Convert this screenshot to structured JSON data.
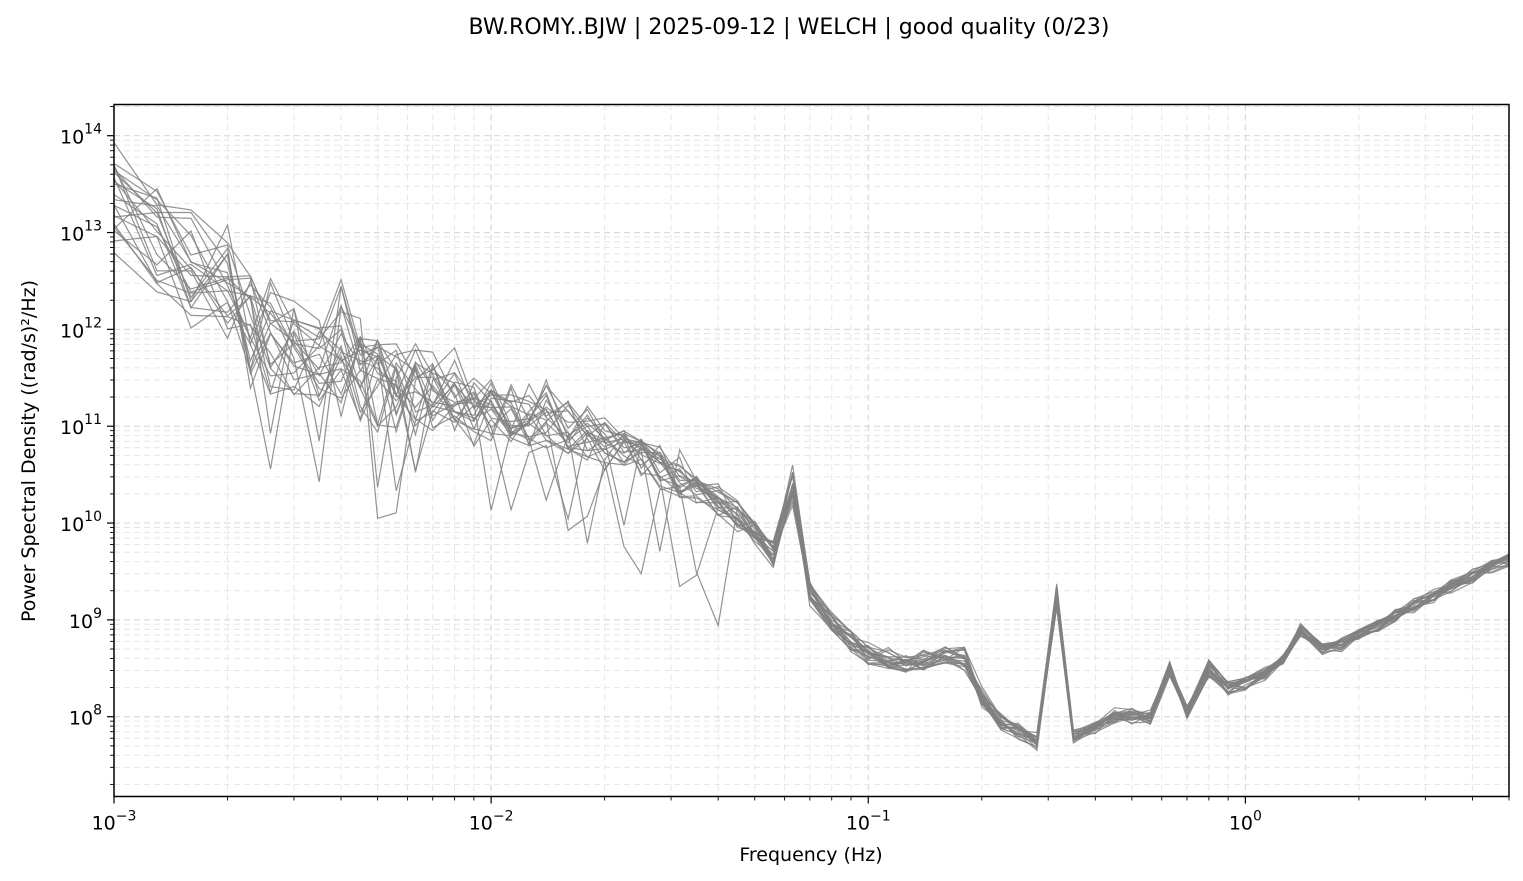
{
  "chart_data": {
    "type": "line",
    "title": "BW.ROMY..BJW | 2025-09-12 | WELCH | good quality (0/23)",
    "xlabel": "Frequency (Hz)",
    "ylabel": "Power Spectral Density ((rad/s)²/Hz)",
    "xscale": "log",
    "yscale": "log",
    "xlim": [
      0.001,
      5
    ],
    "ylim": [
      15000000.0,
      210000000000000.0
    ],
    "grid": "major and minor, dashed",
    "legend": "none",
    "xticks": [
      {
        "value": 0.001,
        "label": "10",
        "exp": "−3"
      },
      {
        "value": 0.01,
        "label": "10",
        "exp": "−2"
      },
      {
        "value": 0.1,
        "label": "10",
        "exp": "−1"
      },
      {
        "value": 1,
        "label": "10",
        "exp": "0"
      }
    ],
    "yticks": [
      {
        "value": 100000000.0,
        "label": "10",
        "exp": "8"
      },
      {
        "value": 1000000000.0,
        "label": "10",
        "exp": "9"
      },
      {
        "value": 10000000000.0,
        "label": "10",
        "exp": "10"
      },
      {
        "value": 100000000000.0,
        "label": "10",
        "exp": "11"
      },
      {
        "value": 1000000000000.0,
        "label": "10",
        "exp": "12"
      },
      {
        "value": 10000000000000.0,
        "label": "10",
        "exp": "13"
      },
      {
        "value": 100000000000000.0,
        "label": "10",
        "exp": "14"
      }
    ],
    "line_color": "#808080",
    "x": [
      0.001,
      0.0013,
      0.0016,
      0.002,
      0.0023,
      0.0026,
      0.003,
      0.0035,
      0.004,
      0.0045,
      0.005,
      0.0056,
      0.0063,
      0.007,
      0.008,
      0.009,
      0.01,
      0.0113,
      0.0126,
      0.014,
      0.016,
      0.018,
      0.02,
      0.0225,
      0.025,
      0.028,
      0.0316,
      0.035,
      0.04,
      0.045,
      0.05,
      0.056,
      0.063,
      0.07,
      0.08,
      0.09,
      0.1,
      0.113,
      0.126,
      0.14,
      0.16,
      0.18,
      0.2,
      0.225,
      0.25,
      0.28,
      0.316,
      0.35,
      0.4,
      0.45,
      0.5,
      0.56,
      0.63,
      0.7,
      0.8,
      0.9,
      1.0,
      1.13,
      1.26,
      1.4,
      1.6,
      1.8,
      2.0,
      2.25,
      2.5,
      2.8,
      3.16,
      3.5,
      4.0,
      4.5,
      5.0
    ],
    "median_log10_psd": [
      13.3,
      13.0,
      12.6,
      12.4,
      12.0,
      11.9,
      11.8,
      11.7,
      11.9,
      11.6,
      11.5,
      11.4,
      11.4,
      11.35,
      11.3,
      11.2,
      11.15,
      11.15,
      11.1,
      11.1,
      11.0,
      10.9,
      10.85,
      10.8,
      10.7,
      10.6,
      10.5,
      10.35,
      10.25,
      10.1,
      9.9,
      9.7,
      10.4,
      9.3,
      9.0,
      8.8,
      8.65,
      8.6,
      8.55,
      8.6,
      8.65,
      8.6,
      8.2,
      7.95,
      7.85,
      7.75,
      9.25,
      7.8,
      7.9,
      8.0,
      8.0,
      8.0,
      8.5,
      8.05,
      8.5,
      8.3,
      8.35,
      8.45,
      8.6,
      8.9,
      8.7,
      8.75,
      8.85,
      8.95,
      9.05,
      9.15,
      9.25,
      9.35,
      9.45,
      9.55,
      9.62
    ],
    "spread_log10": [
      0.5,
      0.55,
      0.55,
      0.6,
      0.6,
      0.55,
      0.5,
      0.45,
      0.5,
      0.45,
      0.45,
      0.4,
      0.4,
      0.4,
      0.4,
      0.35,
      0.3,
      0.3,
      0.3,
      0.3,
      0.25,
      0.25,
      0.25,
      0.2,
      0.2,
      0.2,
      0.2,
      0.15,
      0.15,
      0.15,
      0.15,
      0.15,
      0.2,
      0.12,
      0.12,
      0.1,
      0.1,
      0.1,
      0.1,
      0.1,
      0.1,
      0.1,
      0.1,
      0.08,
      0.08,
      0.08,
      0.1,
      0.06,
      0.06,
      0.08,
      0.07,
      0.07,
      0.08,
      0.06,
      0.08,
      0.06,
      0.06,
      0.06,
      0.06,
      0.07,
      0.06,
      0.06,
      0.06,
      0.06,
      0.06,
      0.06,
      0.06,
      0.06,
      0.06,
      0.06,
      0.06
    ],
    "series_count": 23
  }
}
